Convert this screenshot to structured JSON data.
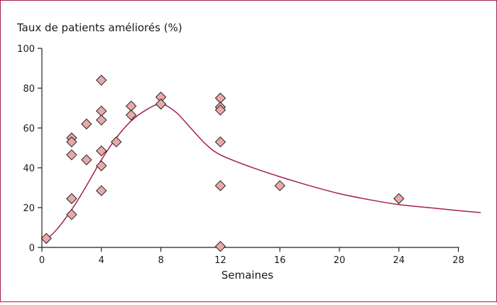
{
  "chart_data": {
    "type": "scatter",
    "ylabel": "Taux de patients améliorés (%)",
    "xlabel": "Semaines",
    "xlim": [
      0,
      29.5
    ],
    "ylim": [
      0,
      100
    ],
    "x_ticks": [
      0,
      4,
      8,
      12,
      16,
      20,
      24,
      28
    ],
    "y_ticks": [
      0,
      20,
      40,
      60,
      80,
      100
    ],
    "grid": false,
    "legend": "none",
    "colors": {
      "marker_fill": "#e9a9a8",
      "marker_stroke": "#222222",
      "curve": "#a3214f",
      "frame": "#a3214f",
      "axis": "#222222"
    },
    "points": [
      {
        "x": 0.3,
        "y": 4.5
      },
      {
        "x": 2,
        "y": 55
      },
      {
        "x": 2,
        "y": 53
      },
      {
        "x": 2,
        "y": 46.5
      },
      {
        "x": 2,
        "y": 24.5
      },
      {
        "x": 2,
        "y": 16.5
      },
      {
        "x": 3,
        "y": 62
      },
      {
        "x": 3,
        "y": 44
      },
      {
        "x": 4,
        "y": 84
      },
      {
        "x": 4,
        "y": 68.5
      },
      {
        "x": 4,
        "y": 64
      },
      {
        "x": 4,
        "y": 48.5
      },
      {
        "x": 4,
        "y": 41
      },
      {
        "x": 4,
        "y": 28.5
      },
      {
        "x": 5,
        "y": 53
      },
      {
        "x": 6,
        "y": 71
      },
      {
        "x": 6,
        "y": 66.5
      },
      {
        "x": 8,
        "y": 75.5
      },
      {
        "x": 8,
        "y": 72
      },
      {
        "x": 12,
        "y": 75
      },
      {
        "x": 12,
        "y": 70.5
      },
      {
        "x": 12,
        "y": 69
      },
      {
        "x": 12,
        "y": 53
      },
      {
        "x": 12,
        "y": 31
      },
      {
        "x": 12,
        "y": 0.5
      },
      {
        "x": 16,
        "y": 31
      },
      {
        "x": 24,
        "y": 24.5
      }
    ],
    "trend_curve": [
      {
        "x": 0.3,
        "y": 4
      },
      {
        "x": 1,
        "y": 9
      },
      {
        "x": 2,
        "y": 19
      },
      {
        "x": 3,
        "y": 31
      },
      {
        "x": 4,
        "y": 44
      },
      {
        "x": 5,
        "y": 55
      },
      {
        "x": 6,
        "y": 63.5
      },
      {
        "x": 7,
        "y": 69
      },
      {
        "x": 8,
        "y": 72
      },
      {
        "x": 9,
        "y": 68
      },
      {
        "x": 10,
        "y": 60
      },
      {
        "x": 11,
        "y": 52
      },
      {
        "x": 12,
        "y": 46.5
      },
      {
        "x": 14,
        "y": 40.5
      },
      {
        "x": 16,
        "y": 35.5
      },
      {
        "x": 18,
        "y": 31
      },
      {
        "x": 20,
        "y": 27
      },
      {
        "x": 22,
        "y": 24
      },
      {
        "x": 24,
        "y": 21.5
      },
      {
        "x": 26,
        "y": 20
      },
      {
        "x": 28,
        "y": 18.5
      },
      {
        "x": 29.5,
        "y": 17.5
      }
    ]
  }
}
